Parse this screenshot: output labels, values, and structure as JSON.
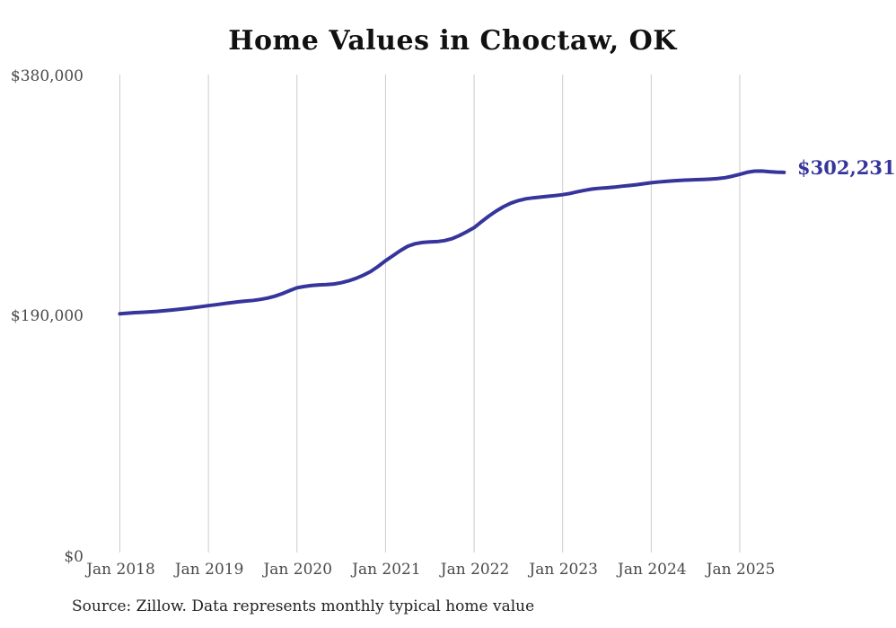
{
  "title": "Home Values in Choctaw, OK",
  "source_note": "Source: Zillow. Data represents monthly typical home value",
  "end_label": "$302,231",
  "colors": {
    "line": "#35359C",
    "end_label_text": "#35359C",
    "grid": "#cccccc",
    "axis_text": "#4a4a4a",
    "title_text": "#111111",
    "source_text": "#222222",
    "background": "#ffffff"
  },
  "y_axis": {
    "ticks": [
      "$380,000",
      "$190,000",
      "$0"
    ],
    "min": 0,
    "max": 380000
  },
  "x_axis": {
    "ticks": [
      "Jan 2018",
      "Jan 2019",
      "Jan 2020",
      "Jan 2021",
      "Jan 2022",
      "Jan 2023",
      "Jan 2024",
      "Jan 2025"
    ]
  },
  "chart_data": {
    "type": "line",
    "title": "Home Values in Choctaw, OK",
    "series_name": "Monthly typical home value (USD)",
    "unit": "USD",
    "ylim": [
      0,
      380000
    ],
    "y_tick_values": [
      0,
      190000,
      380000
    ],
    "x_tick_labels": [
      "Jan 2018",
      "Jan 2019",
      "Jan 2020",
      "Jan 2021",
      "Jan 2022",
      "Jan 2023",
      "Jan 2024",
      "Jan 2025"
    ],
    "grid": "vertical-only",
    "legend": "none",
    "last_value": 302231,
    "last_value_label": "$302,231",
    "months": [
      "2018-01",
      "2018-02",
      "2018-03",
      "2018-04",
      "2018-05",
      "2018-06",
      "2018-07",
      "2018-08",
      "2018-09",
      "2018-10",
      "2018-11",
      "2018-12",
      "2019-01",
      "2019-02",
      "2019-03",
      "2019-04",
      "2019-05",
      "2019-06",
      "2019-07",
      "2019-08",
      "2019-09",
      "2019-10",
      "2019-11",
      "2019-12",
      "2020-01",
      "2020-02",
      "2020-03",
      "2020-04",
      "2020-05",
      "2020-06",
      "2020-07",
      "2020-08",
      "2020-09",
      "2020-10",
      "2020-11",
      "2020-12",
      "2021-01",
      "2021-02",
      "2021-03",
      "2021-04",
      "2021-05",
      "2021-06",
      "2021-07",
      "2021-08",
      "2021-09",
      "2021-10",
      "2021-11",
      "2021-12",
      "2022-01",
      "2022-02",
      "2022-03",
      "2022-04",
      "2022-05",
      "2022-06",
      "2022-07",
      "2022-08",
      "2022-09",
      "2022-10",
      "2022-11",
      "2022-12",
      "2023-01",
      "2023-02",
      "2023-03",
      "2023-04",
      "2023-05",
      "2023-06",
      "2023-07",
      "2023-08",
      "2023-09",
      "2023-10",
      "2023-11",
      "2023-12",
      "2024-01",
      "2024-02",
      "2024-03",
      "2024-04",
      "2024-05",
      "2024-06",
      "2024-07",
      "2024-08",
      "2024-09",
      "2024-10",
      "2024-11",
      "2024-12",
      "2025-01",
      "2025-02",
      "2025-03",
      "2025-04",
      "2025-05",
      "2025-06",
      "2025-07"
    ],
    "values": [
      189800,
      190300,
      190700,
      191000,
      191300,
      191700,
      192200,
      192800,
      193400,
      194000,
      194700,
      195500,
      196300,
      197000,
      197800,
      198600,
      199300,
      199900,
      200400,
      201200,
      202300,
      203800,
      205800,
      208200,
      210500,
      211500,
      212300,
      212800,
      213000,
      213500,
      214500,
      216000,
      218000,
      220500,
      223500,
      227500,
      232000,
      236000,
      240000,
      243500,
      245500,
      246500,
      247000,
      247200,
      248000,
      249500,
      252000,
      255000,
      258300,
      263000,
      267500,
      271500,
      275000,
      277800,
      279800,
      281200,
      282000,
      282600,
      283200,
      283800,
      284500,
      285500,
      286800,
      288000,
      289000,
      289600,
      290000,
      290500,
      291200,
      291800,
      292400,
      293200,
      294000,
      294600,
      295100,
      295500,
      295900,
      296200,
      296400,
      296600,
      296900,
      297300,
      298000,
      299200,
      300700,
      302300,
      303200,
      303300,
      302800,
      302400,
      302231
    ]
  }
}
